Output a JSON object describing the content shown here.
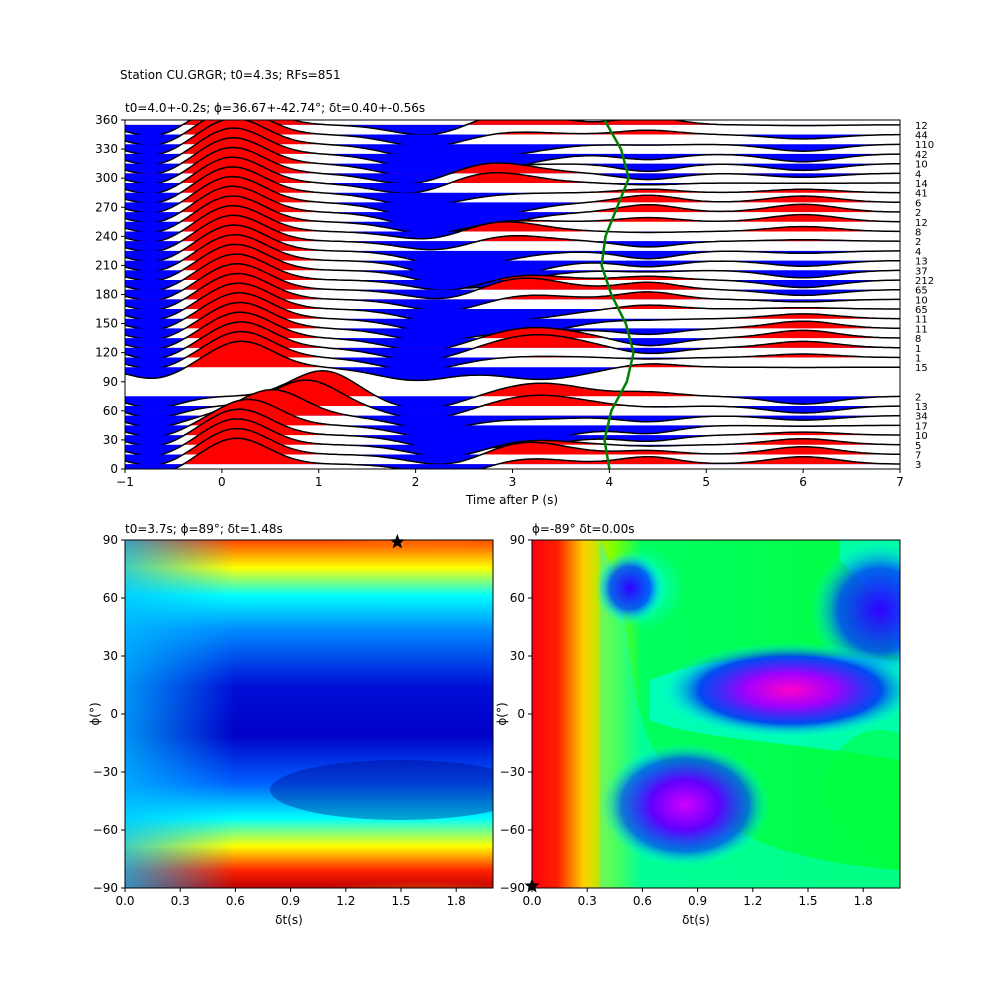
{
  "suptitle": "Station CU.GRGR; t0=4.3s; RFs=851",
  "chart_data": [
    {
      "type": "line",
      "title": "t0=4.0+-0.2s; ϕ=36.67+-42.74°; δt=0.40+-0.56s",
      "xlabel": "Time after P (s)",
      "ylabel": "",
      "xlim": [
        -1,
        7
      ],
      "ylim": [
        0,
        360
      ],
      "x_ticks": [
        "−1",
        "0",
        "1",
        "2",
        "3",
        "4",
        "5",
        "6",
        "7"
      ],
      "y_ticks": [
        "0",
        "30",
        "60",
        "90",
        "120",
        "150",
        "180",
        "210",
        "240",
        "270",
        "300",
        "330",
        "360"
      ],
      "fill_colors": {
        "positive": "#ff0000",
        "negative": "#0000ff"
      },
      "trace_counts": [
        {
          "baz": 5,
          "n": "3"
        },
        {
          "baz": 15,
          "n": "7"
        },
        {
          "baz": 25,
          "n": "5"
        },
        {
          "baz": 35,
          "n": "10"
        },
        {
          "baz": 45,
          "n": "17"
        },
        {
          "baz": 55,
          "n": "34"
        },
        {
          "baz": 65,
          "n": "13"
        },
        {
          "baz": 75,
          "n": "2"
        },
        {
          "baz": 105,
          "n": "15"
        },
        {
          "baz": 115,
          "n": "1"
        },
        {
          "baz": 125,
          "n": "1"
        },
        {
          "baz": 135,
          "n": "8"
        },
        {
          "baz": 145,
          "n": "11"
        },
        {
          "baz": 155,
          "n": "11"
        },
        {
          "baz": 165,
          "n": "65"
        },
        {
          "baz": 175,
          "n": "10"
        },
        {
          "baz": 185,
          "n": "65"
        },
        {
          "baz": 195,
          "n": "212"
        },
        {
          "baz": 205,
          "n": "37"
        },
        {
          "baz": 215,
          "n": "13"
        },
        {
          "baz": 225,
          "n": "4"
        },
        {
          "baz": 235,
          "n": "2"
        },
        {
          "baz": 245,
          "n": "8"
        },
        {
          "baz": 255,
          "n": "12"
        },
        {
          "baz": 265,
          "n": "2"
        },
        {
          "baz": 275,
          "n": "6"
        },
        {
          "baz": 285,
          "n": "41"
        },
        {
          "baz": 295,
          "n": "14"
        },
        {
          "baz": 305,
          "n": "4"
        },
        {
          "baz": 315,
          "n": "10"
        },
        {
          "baz": 325,
          "n": "42"
        },
        {
          "baz": 335,
          "n": "110"
        },
        {
          "baz": 345,
          "n": "44"
        },
        {
          "baz": 355,
          "n": "12"
        }
      ],
      "t0_curve": {
        "color": "#008000",
        "baz": [
          0,
          30,
          60,
          90,
          120,
          150,
          180,
          210,
          240,
          270,
          300,
          330,
          360
        ],
        "t": [
          4.0,
          3.95,
          4.02,
          4.18,
          4.25,
          4.17,
          4.02,
          3.92,
          3.96,
          4.08,
          4.2,
          4.12,
          3.95
        ]
      }
    },
    {
      "type": "heatmap",
      "title": "t0=3.7s; ϕ=89°; δt=1.48s",
      "xlabel": "δt(s)",
      "ylabel": "ϕ(°)",
      "xlim": [
        0,
        2
      ],
      "ylim": [
        -90,
        90
      ],
      "x_ticks": [
        "0.0",
        "0.3",
        "0.6",
        "0.9",
        "1.2",
        "1.5",
        "1.8"
      ],
      "y_ticks": [
        "−90",
        "−60",
        "−30",
        "0",
        "30",
        "60",
        "90"
      ],
      "colormap": "jet",
      "marker": {
        "dt": 1.48,
        "phi": 89,
        "symbol": "star"
      }
    },
    {
      "type": "heatmap",
      "title": "ϕ=-89° δt=0.00s",
      "xlabel": "δt(s)",
      "ylabel": "ϕ(°)",
      "xlim": [
        0,
        2
      ],
      "ylim": [
        -90,
        90
      ],
      "x_ticks": [
        "0.0",
        "0.3",
        "0.6",
        "0.9",
        "1.2",
        "1.5",
        "1.8"
      ],
      "y_ticks": [
        "−90",
        "−60",
        "−30",
        "0",
        "30",
        "60",
        "90"
      ],
      "colormap": "hsv",
      "marker": {
        "dt": 0.0,
        "phi": -89,
        "symbol": "star"
      }
    }
  ]
}
